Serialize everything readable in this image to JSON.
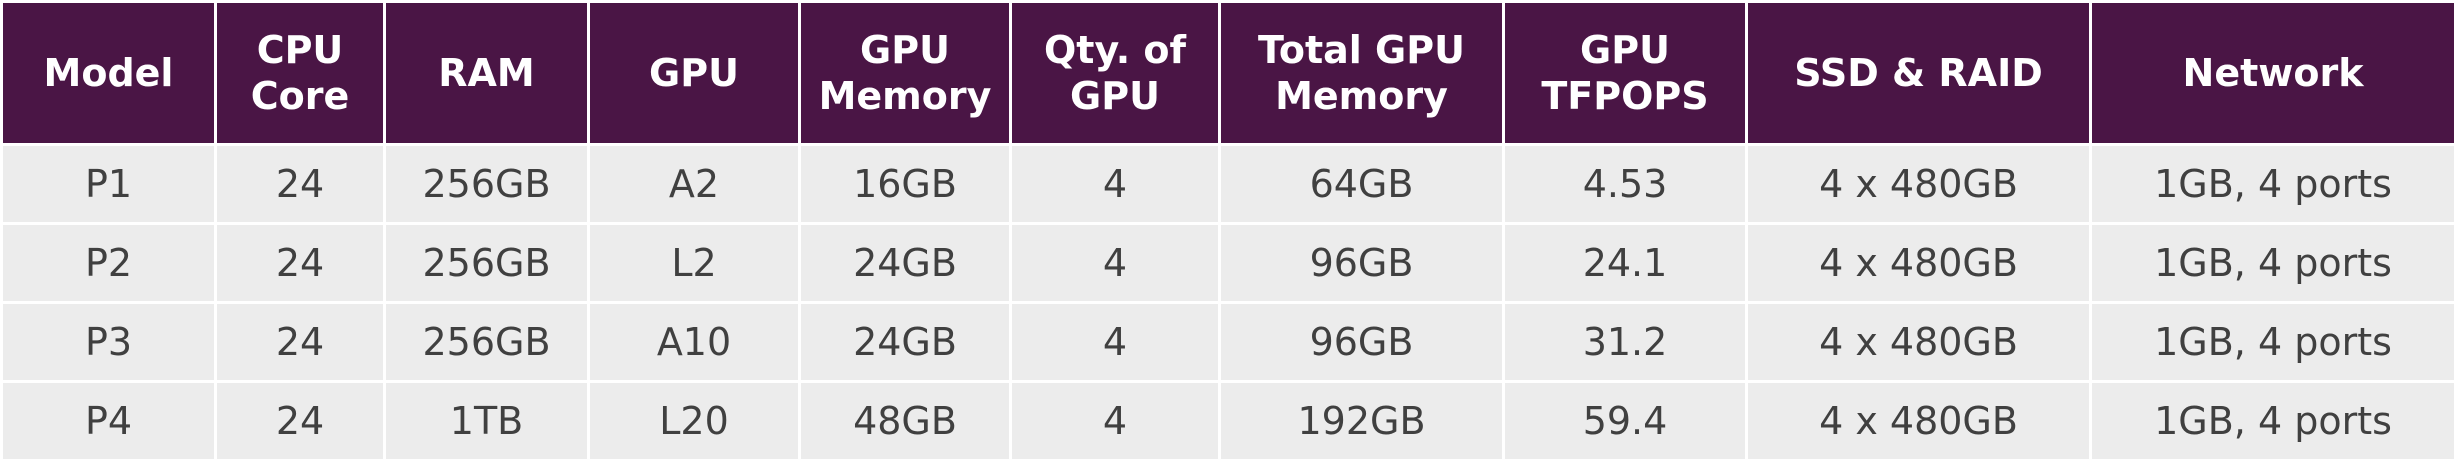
{
  "table": {
    "header": [
      "Model",
      "CPU\nCore",
      "RAM",
      "GPU",
      "GPU\nMemory",
      "Qty. of\nGPU",
      "Total GPU\nMemory",
      "GPU\nTFPOPS",
      "SSD & RAID",
      "Network"
    ],
    "rows": [
      [
        "P1",
        "24",
        "256GB",
        "A2",
        "16GB",
        "4",
        "64GB",
        "4.53",
        "4 x 480GB",
        "1GB, 4 ports"
      ],
      [
        "P2",
        "24",
        "256GB",
        "L2",
        "24GB",
        "4",
        "96GB",
        "24.1",
        "4 x 480GB",
        "1GB, 4 ports"
      ],
      [
        "P3",
        "24",
        "256GB",
        "A10",
        "24GB",
        "4",
        "96GB",
        "31.2",
        "4 x 480GB",
        "1GB, 4 ports"
      ],
      [
        "P4",
        "24",
        "1TB",
        "L20",
        "48GB",
        "4",
        "192GB",
        "59.4",
        "4 x 480GB",
        "1GB, 4 ports"
      ]
    ]
  }
}
